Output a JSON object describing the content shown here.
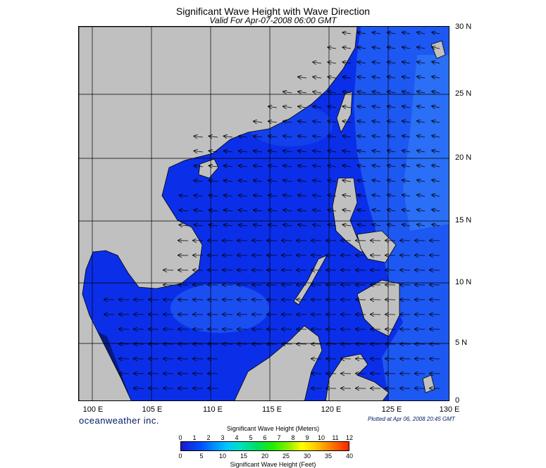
{
  "title": "Significant Wave Height with Wave Direction",
  "subtitle": "Valid For Apr-07-2008 06:00 GMT",
  "brand": "oceanweather inc.",
  "plotted": "Plotted at Apr 06, 2008 20:45 GMT",
  "lon_labels": [
    "100 E",
    "105 E",
    "110 E",
    "115 E",
    "120 E",
    "125 E",
    "130 E"
  ],
  "lat_labels": [
    "30 N",
    "25 N",
    "20 N",
    "15 N",
    "10 N",
    "5 N",
    "0"
  ],
  "colorbar": {
    "meters_title": "Significant Wave Height (Meters)",
    "feet_title": "Significant Wave Height (Feet)",
    "meters_ticks": [
      "0",
      "1",
      "2",
      "3",
      "4",
      "5",
      "6",
      "7",
      "8",
      "9",
      "10",
      "11",
      "12"
    ],
    "feet_ticks": [
      "0",
      "5",
      "10",
      "15",
      "20",
      "25",
      "30",
      "35",
      "40"
    ]
  },
  "colors": {
    "land": "#c0c0c0",
    "sea_low": "#0a28e0",
    "sea_mid": "#1f5af5",
    "sea_high": "#2f7cf5"
  }
}
